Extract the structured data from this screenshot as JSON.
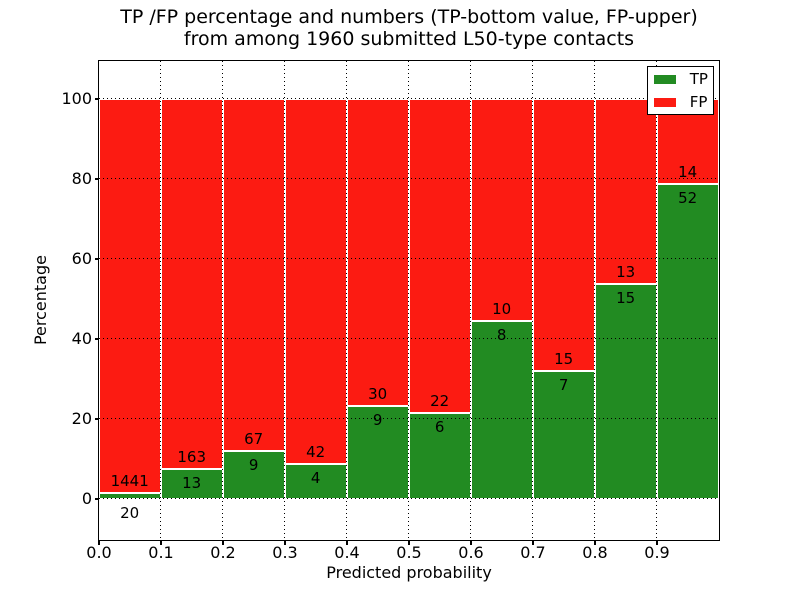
{
  "title": {
    "line1": "TP /FP percentage and numbers (TP-bottom value, FP-upper)",
    "line2": "from among 1960 submitted L50-type contacts"
  },
  "chart_data": {
    "type": "bar",
    "stacked": true,
    "normalized": "percent",
    "title": "TP /FP percentage and numbers (TP-bottom value, FP-upper) from among 1960 submitted L50-type contacts",
    "xlabel": "Predicted probability",
    "ylabel": "Percentage",
    "total_submitted": 1960,
    "bins": [
      "0.0-0.1",
      "0.1-0.2",
      "0.2-0.3",
      "0.3-0.4",
      "0.4-0.5",
      "0.5-0.6",
      "0.6-0.7",
      "0.7-0.8",
      "0.8-0.9",
      "0.9-1.0"
    ],
    "series": [
      {
        "name": "TP",
        "color": "#228b22",
        "counts": [
          20,
          13,
          9,
          4,
          9,
          6,
          8,
          7,
          15,
          52
        ]
      },
      {
        "name": "FP",
        "color": "#fc1b12",
        "counts": [
          1441,
          163,
          67,
          42,
          30,
          22,
          10,
          15,
          13,
          14
        ]
      }
    ],
    "tp_percent": [
      1.37,
      7.39,
      11.84,
      8.7,
      23.08,
      21.43,
      44.44,
      31.82,
      53.57,
      78.79
    ],
    "x_ticks": [
      "0.0",
      "0.1",
      "0.2",
      "0.3",
      "0.4",
      "0.5",
      "0.6",
      "0.7",
      "0.8",
      "0.9"
    ],
    "y_ticks": [
      0,
      20,
      40,
      60,
      80,
      100
    ],
    "xlim": [
      0.0,
      1.0
    ],
    "ylim": [
      -10.25,
      109.75
    ],
    "grid": "dotted",
    "legend": {
      "position": "upper-right",
      "entries": [
        {
          "label": "TP",
          "color": "#228b22"
        },
        {
          "label": "FP",
          "color": "#fc1b12"
        }
      ]
    }
  }
}
